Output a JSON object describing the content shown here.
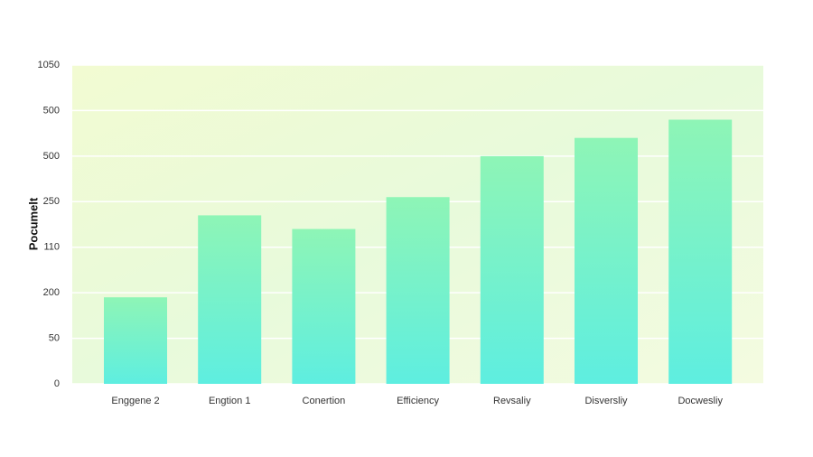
{
  "chart_data": {
    "type": "bar",
    "y_label": "Pocumelt",
    "categories": [
      "Enggene 2",
      "Engtion 1",
      "Conertion",
      "Efficiency",
      "Revsaliy",
      "Disversliy",
      "Docwesliy"
    ],
    "values": [
      1.9,
      3.7,
      3.4,
      4.1,
      5.0,
      5.4,
      5.8
    ],
    "color": "#8ef5b6",
    "ylim": [
      0,
      7
    ],
    "yticks": [
      0,
      {
        "value": 1,
        "label": "50"
      },
      {
        "value": 2,
        "label": "200"
      },
      {
        "value": 3,
        "label": "110"
      },
      {
        "value": 4,
        "label": "250"
      },
      {
        "value": 5,
        "label": "500"
      },
      {
        "value": 6,
        "label": "500"
      },
      {
        "value": 7,
        "label": "1050"
      }
    ],
    "grid": true
  }
}
